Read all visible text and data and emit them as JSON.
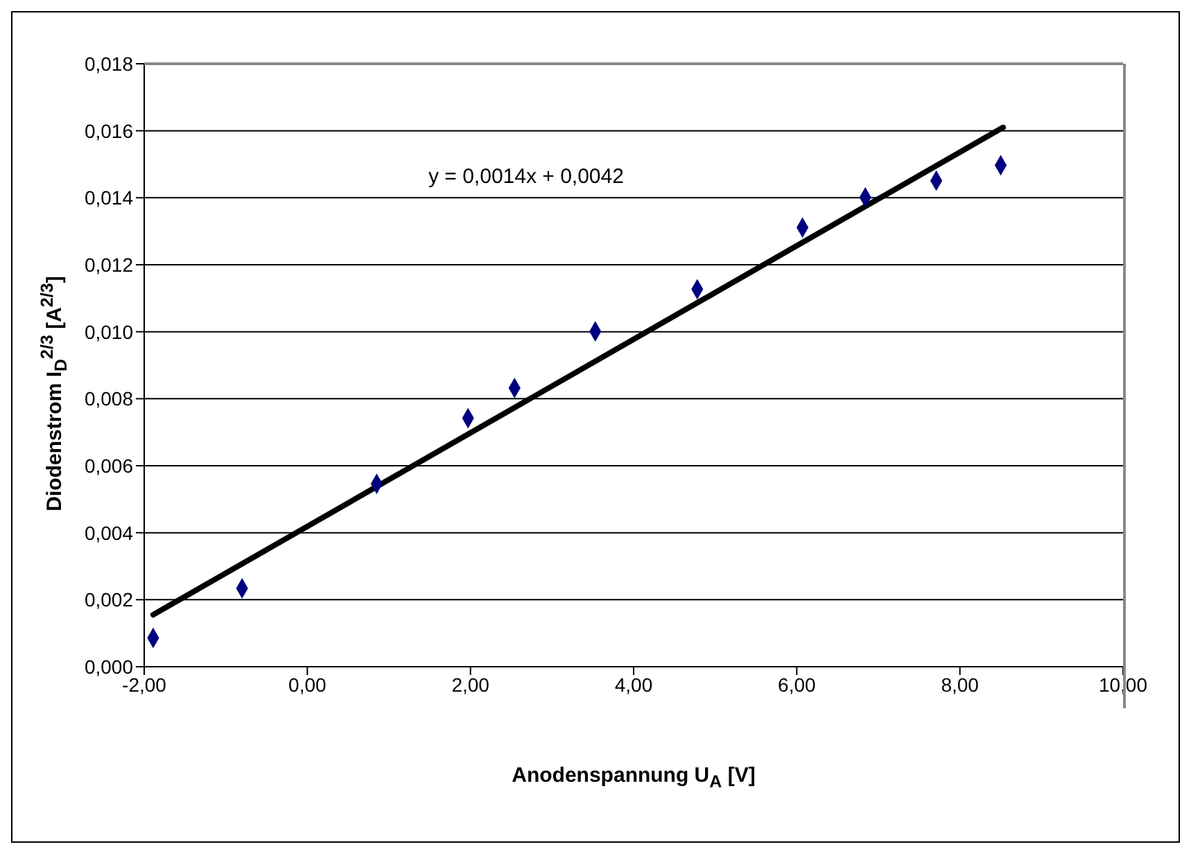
{
  "chart_data": {
    "type": "scatter",
    "xlabel": "Anodenspannung U$_{A}$ [V]",
    "ylabel": "Diodenstrom I$_{D}$$^{2/3}$ [A$^{2/3}$]",
    "annotations": [
      "y = 0,0014x + 0,0042"
    ],
    "series": [
      {
        "color": "#000080",
        "marker": "diamond",
        "x": [
          -1.89,
          -0.8,
          0.85,
          1.97,
          2.54,
          3.53,
          4.78,
          6.07,
          6.84,
          7.71,
          8.5
        ],
        "values": [
          0.00086,
          0.00234,
          0.00546,
          0.00742,
          0.00832,
          0.01001,
          0.01127,
          0.01311,
          0.01401,
          0.01451,
          0.01497
        ]
      },
      {
        "type": "line",
        "color": "#000000",
        "marker": "none",
        "line_style": "solid",
        "x": [
          -1.89,
          8.53
        ],
        "values": [
          0.00155,
          0.0161
        ]
      }
    ],
    "xlim": [
      -2,
      10
    ],
    "ylim": [
      0,
      0.018
    ],
    "xticks": [
      {
        "value": -2,
        "label": "-2,00"
      },
      {
        "value": 0,
        "label": "0,00"
      },
      {
        "value": 2,
        "label": "2,00"
      },
      {
        "value": 4,
        "label": "4,00"
      },
      {
        "value": 6,
        "label": "6,00"
      },
      {
        "value": 8,
        "label": "8,00"
      },
      {
        "value": 10,
        "label": "10,00"
      }
    ],
    "yticks": [
      {
        "value": 0,
        "label": "0,000"
      },
      {
        "value": 0.002,
        "label": "0,002"
      },
      {
        "value": 0.004,
        "label": "0,004"
      },
      {
        "value": 0.006,
        "label": "0,006"
      },
      {
        "value": 0.008,
        "label": "0,008"
      },
      {
        "value": 0.01,
        "label": "0,010"
      },
      {
        "value": 0.012,
        "label": "0,012"
      },
      {
        "value": 0.014,
        "label": "0,014"
      },
      {
        "value": 0.016,
        "label": "0,016"
      },
      {
        "value": 0.018,
        "label": "0,018"
      }
    ],
    "grid": "y"
  }
}
